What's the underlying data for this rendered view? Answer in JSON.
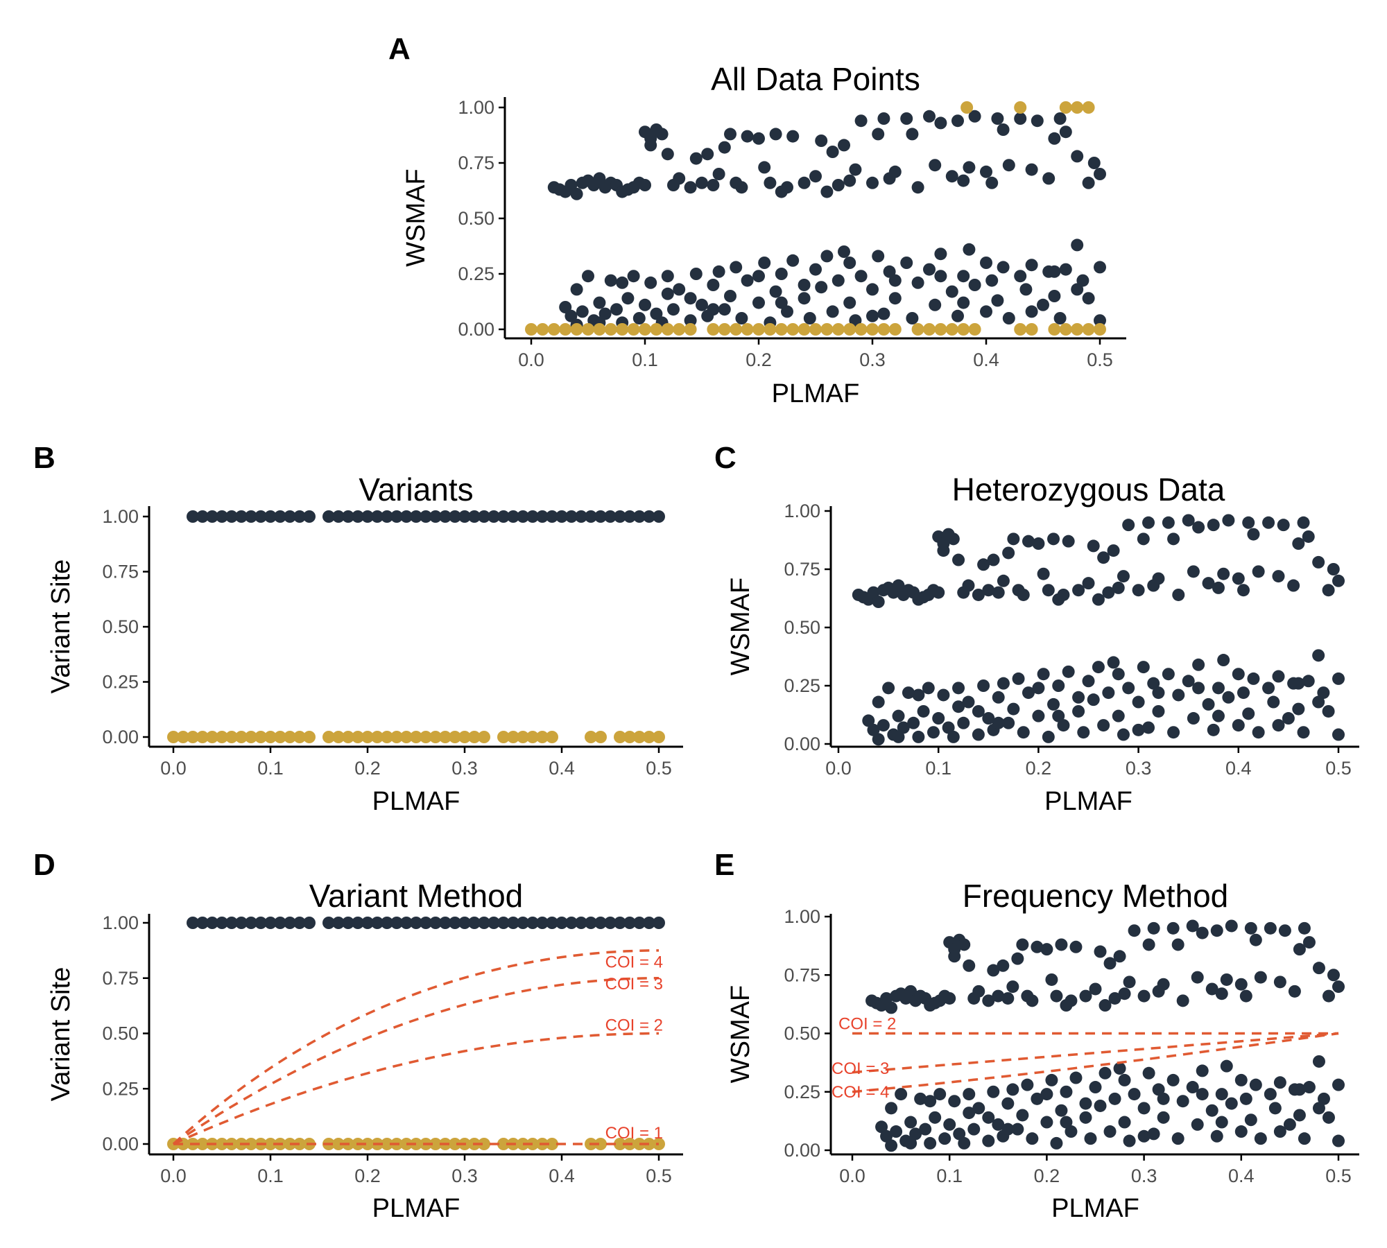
{
  "colors": {
    "variant": "#24303f",
    "reference": "#cca43c",
    "coi_line": "#e05a32",
    "coi_label": "#e8432c",
    "axis": "#000000",
    "tick_label": "#4d4d4d"
  },
  "chart_data": [
    {
      "id": "A",
      "letter": "A",
      "type": "scatter",
      "title": "All Data Points",
      "xlabel": "PLMAF",
      "ylabel": "WSMAF",
      "xlim": [
        0,
        0.5
      ],
      "ylim": [
        0,
        1
      ],
      "xticks": [
        "0.0",
        "0.1",
        "0.2",
        "0.3",
        "0.4",
        "0.5"
      ],
      "yticks": [
        "0.00",
        "0.25",
        "0.50",
        "0.75",
        "1.00"
      ],
      "grid": false,
      "legend": "none",
      "series": [
        {
          "role": "heterozygous",
          "color": "#24303f",
          "points": "het"
        },
        {
          "role": "homozygous",
          "color": "#cca43c",
          "points": "hom"
        }
      ]
    },
    {
      "id": "B",
      "letter": "B",
      "type": "scatter",
      "title": "Variants",
      "xlabel": "PLMAF",
      "ylabel": "Variant Site",
      "xlim": [
        0,
        0.5
      ],
      "ylim": [
        0,
        1
      ],
      "xticks": [
        "0.0",
        "0.1",
        "0.2",
        "0.3",
        "0.4",
        "0.5"
      ],
      "yticks": [
        "0.00",
        "0.25",
        "0.50",
        "0.75",
        "1.00"
      ],
      "grid": false,
      "legend": "none",
      "series": [
        {
          "role": "variant",
          "color": "#24303f",
          "points": "variant_sites"
        },
        {
          "role": "non-variant",
          "color": "#cca43c",
          "points": "nonvariant_sites"
        }
      ]
    },
    {
      "id": "C",
      "letter": "C",
      "type": "scatter",
      "title": "Heterozygous Data",
      "xlabel": "PLMAF",
      "ylabel": "WSMAF",
      "xlim": [
        0,
        0.5
      ],
      "ylim": [
        0,
        1
      ],
      "xticks": [
        "0.0",
        "0.1",
        "0.2",
        "0.3",
        "0.4",
        "0.5"
      ],
      "yticks": [
        "0.00",
        "0.25",
        "0.50",
        "0.75",
        "1.00"
      ],
      "grid": false,
      "legend": "none",
      "series": [
        {
          "role": "heterozygous",
          "color": "#24303f",
          "points": "het"
        }
      ]
    },
    {
      "id": "D",
      "letter": "D",
      "type": "scatter",
      "title": "Variant Method",
      "xlabel": "PLMAF",
      "ylabel": "Variant Site",
      "xlim": [
        0,
        0.5
      ],
      "ylim": [
        0,
        1
      ],
      "xticks": [
        "0.0",
        "0.1",
        "0.2",
        "0.3",
        "0.4",
        "0.5"
      ],
      "yticks": [
        "0.00",
        "0.25",
        "0.50",
        "0.75",
        "1.00"
      ],
      "grid": false,
      "legend": "none",
      "series": [
        {
          "role": "variant",
          "color": "#24303f",
          "points": "variant_sites"
        },
        {
          "role": "non-variant",
          "color": "#cca43c",
          "points": "nonvariant_sites"
        }
      ],
      "curves": [
        {
          "label": "COI = 1",
          "coi": 1,
          "kind": "variant"
        },
        {
          "label": "COI = 2",
          "coi": 2,
          "kind": "variant"
        },
        {
          "label": "COI = 3",
          "coi": 3,
          "kind": "variant"
        },
        {
          "label": "COI = 4",
          "coi": 4,
          "kind": "variant"
        }
      ]
    },
    {
      "id": "E",
      "letter": "E",
      "type": "scatter",
      "title": "Frequency Method",
      "xlabel": "PLMAF",
      "ylabel": "WSMAF",
      "xlim": [
        0,
        0.5
      ],
      "ylim": [
        0,
        1
      ],
      "xticks": [
        "0.0",
        "0.1",
        "0.2",
        "0.3",
        "0.4",
        "0.5"
      ],
      "yticks": [
        "0.00",
        "0.25",
        "0.50",
        "0.75",
        "1.00"
      ],
      "grid": false,
      "legend": "none",
      "series": [
        {
          "role": "heterozygous",
          "color": "#24303f",
          "points": "het"
        }
      ],
      "curves": [
        {
          "label": "COI = 2",
          "coi": 2,
          "kind": "frequency"
        },
        {
          "label": "COI = 3",
          "coi": 3,
          "kind": "frequency"
        },
        {
          "label": "COI = 4",
          "coi": 4,
          "kind": "frequency"
        }
      ]
    }
  ],
  "points": {
    "het": [
      [
        0.02,
        0.64
      ],
      [
        0.025,
        0.63
      ],
      [
        0.03,
        0.62
      ],
      [
        0.035,
        0.65
      ],
      [
        0.04,
        0.61
      ],
      [
        0.045,
        0.66
      ],
      [
        0.05,
        0.67
      ],
      [
        0.055,
        0.65
      ],
      [
        0.06,
        0.68
      ],
      [
        0.065,
        0.64
      ],
      [
        0.07,
        0.66
      ],
      [
        0.075,
        0.65
      ],
      [
        0.08,
        0.62
      ],
      [
        0.085,
        0.63
      ],
      [
        0.09,
        0.64
      ],
      [
        0.095,
        0.66
      ],
      [
        0.1,
        0.65
      ],
      [
        0.1,
        0.89
      ],
      [
        0.105,
        0.86
      ],
      [
        0.11,
        0.9
      ],
      [
        0.115,
        0.88
      ],
      [
        0.105,
        0.83
      ],
      [
        0.12,
        0.79
      ],
      [
        0.125,
        0.65
      ],
      [
        0.13,
        0.68
      ],
      [
        0.14,
        0.64
      ],
      [
        0.145,
        0.77
      ],
      [
        0.15,
        0.66
      ],
      [
        0.155,
        0.79
      ],
      [
        0.16,
        0.65
      ],
      [
        0.165,
        0.7
      ],
      [
        0.17,
        0.82
      ],
      [
        0.175,
        0.88
      ],
      [
        0.18,
        0.66
      ],
      [
        0.185,
        0.64
      ],
      [
        0.19,
        0.87
      ],
      [
        0.2,
        0.86
      ],
      [
        0.205,
        0.73
      ],
      [
        0.21,
        0.66
      ],
      [
        0.215,
        0.88
      ],
      [
        0.22,
        0.62
      ],
      [
        0.225,
        0.64
      ],
      [
        0.23,
        0.87
      ],
      [
        0.24,
        0.66
      ],
      [
        0.25,
        0.69
      ],
      [
        0.255,
        0.85
      ],
      [
        0.26,
        0.62
      ],
      [
        0.265,
        0.8
      ],
      [
        0.27,
        0.65
      ],
      [
        0.275,
        0.83
      ],
      [
        0.28,
        0.67
      ],
      [
        0.285,
        0.72
      ],
      [
        0.29,
        0.94
      ],
      [
        0.3,
        0.66
      ],
      [
        0.305,
        0.88
      ],
      [
        0.31,
        0.95
      ],
      [
        0.315,
        0.68
      ],
      [
        0.32,
        0.71
      ],
      [
        0.33,
        0.95
      ],
      [
        0.335,
        0.88
      ],
      [
        0.34,
        0.64
      ],
      [
        0.35,
        0.96
      ],
      [
        0.355,
        0.74
      ],
      [
        0.36,
        0.93
      ],
      [
        0.37,
        0.69
      ],
      [
        0.375,
        0.94
      ],
      [
        0.38,
        0.67
      ],
      [
        0.385,
        0.73
      ],
      [
        0.39,
        0.96
      ],
      [
        0.4,
        0.71
      ],
      [
        0.405,
        0.66
      ],
      [
        0.41,
        0.95
      ],
      [
        0.415,
        0.9
      ],
      [
        0.42,
        0.74
      ],
      [
        0.43,
        0.95
      ],
      [
        0.44,
        0.72
      ],
      [
        0.445,
        0.94
      ],
      [
        0.455,
        0.68
      ],
      [
        0.46,
        0.86
      ],
      [
        0.465,
        0.95
      ],
      [
        0.47,
        0.89
      ],
      [
        0.48,
        0.78
      ],
      [
        0.49,
        0.66
      ],
      [
        0.495,
        0.75
      ],
      [
        0.5,
        0.7
      ],
      [
        0.03,
        0.1
      ],
      [
        0.035,
        0.06
      ],
      [
        0.04,
        0.02
      ],
      [
        0.045,
        0.08
      ],
      [
        0.05,
        0.24
      ],
      [
        0.055,
        0.04
      ],
      [
        0.06,
        0.12
      ],
      [
        0.065,
        0.07
      ],
      [
        0.07,
        0.22
      ],
      [
        0.075,
        0.09
      ],
      [
        0.08,
        0.03
      ],
      [
        0.085,
        0.14
      ],
      [
        0.09,
        0.24
      ],
      [
        0.095,
        0.05
      ],
      [
        0.1,
        0.11
      ],
      [
        0.105,
        0.21
      ],
      [
        0.11,
        0.07
      ],
      [
        0.115,
        0.03
      ],
      [
        0.12,
        0.16
      ],
      [
        0.125,
        0.09
      ],
      [
        0.13,
        0.18
      ],
      [
        0.14,
        0.04
      ],
      [
        0.145,
        0.25
      ],
      [
        0.15,
        0.11
      ],
      [
        0.155,
        0.06
      ],
      [
        0.16,
        0.2
      ],
      [
        0.165,
        0.26
      ],
      [
        0.17,
        0.09
      ],
      [
        0.175,
        0.15
      ],
      [
        0.18,
        0.28
      ],
      [
        0.185,
        0.05
      ],
      [
        0.19,
        0.22
      ],
      [
        0.2,
        0.12
      ],
      [
        0.205,
        0.3
      ],
      [
        0.21,
        0.03
      ],
      [
        0.215,
        0.17
      ],
      [
        0.22,
        0.25
      ],
      [
        0.225,
        0.08
      ],
      [
        0.23,
        0.31
      ],
      [
        0.24,
        0.14
      ],
      [
        0.245,
        0.05
      ],
      [
        0.25,
        0.27
      ],
      [
        0.255,
        0.19
      ],
      [
        0.26,
        0.33
      ],
      [
        0.265,
        0.08
      ],
      [
        0.27,
        0.22
      ],
      [
        0.275,
        0.35
      ],
      [
        0.28,
        0.12
      ],
      [
        0.285,
        0.04
      ],
      [
        0.29,
        0.24
      ],
      [
        0.3,
        0.18
      ],
      [
        0.305,
        0.33
      ],
      [
        0.31,
        0.07
      ],
      [
        0.315,
        0.26
      ],
      [
        0.32,
        0.14
      ],
      [
        0.33,
        0.3
      ],
      [
        0.335,
        0.05
      ],
      [
        0.34,
        0.21
      ],
      [
        0.35,
        0.27
      ],
      [
        0.355,
        0.11
      ],
      [
        0.36,
        0.34
      ],
      [
        0.37,
        0.17
      ],
      [
        0.375,
        0.06
      ],
      [
        0.38,
        0.24
      ],
      [
        0.385,
        0.36
      ],
      [
        0.39,
        0.2
      ],
      [
        0.4,
        0.08
      ],
      [
        0.405,
        0.22
      ],
      [
        0.41,
        0.13
      ],
      [
        0.415,
        0.28
      ],
      [
        0.42,
        0.05
      ],
      [
        0.43,
        0.24
      ],
      [
        0.435,
        0.18
      ],
      [
        0.44,
        0.29
      ],
      [
        0.45,
        0.11
      ],
      [
        0.455,
        0.26
      ],
      [
        0.46,
        0.15
      ],
      [
        0.465,
        0.05
      ],
      [
        0.47,
        0.27
      ],
      [
        0.48,
        0.38
      ],
      [
        0.485,
        0.22
      ],
      [
        0.49,
        0.14
      ],
      [
        0.5,
        0.28
      ],
      [
        0.5,
        0.04
      ],
      [
        0.04,
        0.18
      ],
      [
        0.08,
        0.21
      ],
      [
        0.12,
        0.24
      ],
      [
        0.16,
        0.09
      ],
      [
        0.2,
        0.24
      ],
      [
        0.24,
        0.2
      ],
      [
        0.28,
        0.3
      ],
      [
        0.32,
        0.22
      ],
      [
        0.36,
        0.24
      ],
      [
        0.4,
        0.3
      ],
      [
        0.44,
        0.08
      ],
      [
        0.48,
        0.18
      ],
      [
        0.06,
        0.03
      ],
      [
        0.14,
        0.14
      ],
      [
        0.22,
        0.12
      ],
      [
        0.3,
        0.06
      ],
      [
        0.38,
        0.12
      ],
      [
        0.46,
        0.26
      ]
    ],
    "hom": [
      [
        0.0,
        0.0
      ],
      [
        0.01,
        0.0
      ],
      [
        0.02,
        0.0
      ],
      [
        0.03,
        0.0
      ],
      [
        0.04,
        0.0
      ],
      [
        0.05,
        0.0
      ],
      [
        0.06,
        0.0
      ],
      [
        0.07,
        0.0
      ],
      [
        0.08,
        0.0
      ],
      [
        0.09,
        0.0
      ],
      [
        0.1,
        0.0
      ],
      [
        0.11,
        0.0
      ],
      [
        0.12,
        0.0
      ],
      [
        0.13,
        0.0
      ],
      [
        0.14,
        0.0
      ],
      [
        0.16,
        0.0
      ],
      [
        0.17,
        0.0
      ],
      [
        0.18,
        0.0
      ],
      [
        0.19,
        0.0
      ],
      [
        0.2,
        0.0
      ],
      [
        0.21,
        0.0
      ],
      [
        0.22,
        0.0
      ],
      [
        0.23,
        0.0
      ],
      [
        0.24,
        0.0
      ],
      [
        0.25,
        0.0
      ],
      [
        0.26,
        0.0
      ],
      [
        0.27,
        0.0
      ],
      [
        0.28,
        0.0
      ],
      [
        0.29,
        0.0
      ],
      [
        0.3,
        0.0
      ],
      [
        0.31,
        0.0
      ],
      [
        0.32,
        0.0
      ],
      [
        0.34,
        0.0
      ],
      [
        0.35,
        0.0
      ],
      [
        0.36,
        0.0
      ],
      [
        0.37,
        0.0
      ],
      [
        0.38,
        0.0
      ],
      [
        0.39,
        0.0
      ],
      [
        0.43,
        0.0
      ],
      [
        0.44,
        0.0
      ],
      [
        0.46,
        0.0
      ],
      [
        0.47,
        0.0
      ],
      [
        0.48,
        0.0
      ],
      [
        0.49,
        0.0
      ],
      [
        0.5,
        0.0
      ],
      [
        0.383,
        1.0
      ],
      [
        0.43,
        1.0
      ],
      [
        0.48,
        1.0
      ],
      [
        0.49,
        1.0
      ],
      [
        0.47,
        1.0
      ]
    ],
    "variant_sites": [
      [
        0.02,
        1.0
      ],
      [
        0.03,
        1.0
      ],
      [
        0.04,
        1.0
      ],
      [
        0.05,
        1.0
      ],
      [
        0.06,
        1.0
      ],
      [
        0.07,
        1.0
      ],
      [
        0.08,
        1.0
      ],
      [
        0.09,
        1.0
      ],
      [
        0.1,
        1.0
      ],
      [
        0.11,
        1.0
      ],
      [
        0.12,
        1.0
      ],
      [
        0.13,
        1.0
      ],
      [
        0.14,
        1.0
      ],
      [
        0.16,
        1.0
      ],
      [
        0.17,
        1.0
      ],
      [
        0.18,
        1.0
      ],
      [
        0.19,
        1.0
      ],
      [
        0.2,
        1.0
      ],
      [
        0.21,
        1.0
      ],
      [
        0.22,
        1.0
      ],
      [
        0.23,
        1.0
      ],
      [
        0.24,
        1.0
      ],
      [
        0.25,
        1.0
      ],
      [
        0.26,
        1.0
      ],
      [
        0.27,
        1.0
      ],
      [
        0.28,
        1.0
      ],
      [
        0.29,
        1.0
      ],
      [
        0.3,
        1.0
      ],
      [
        0.31,
        1.0
      ],
      [
        0.32,
        1.0
      ],
      [
        0.33,
        1.0
      ],
      [
        0.34,
        1.0
      ],
      [
        0.35,
        1.0
      ],
      [
        0.36,
        1.0
      ],
      [
        0.37,
        1.0
      ],
      [
        0.38,
        1.0
      ],
      [
        0.39,
        1.0
      ],
      [
        0.4,
        1.0
      ],
      [
        0.41,
        1.0
      ],
      [
        0.42,
        1.0
      ],
      [
        0.43,
        1.0
      ],
      [
        0.44,
        1.0
      ],
      [
        0.45,
        1.0
      ],
      [
        0.46,
        1.0
      ],
      [
        0.47,
        1.0
      ],
      [
        0.48,
        1.0
      ],
      [
        0.49,
        1.0
      ],
      [
        0.5,
        1.0
      ]
    ],
    "nonvariant_sites": [
      [
        0.0,
        0.0
      ],
      [
        0.01,
        0.0
      ],
      [
        0.02,
        0.0
      ],
      [
        0.03,
        0.0
      ],
      [
        0.04,
        0.0
      ],
      [
        0.05,
        0.0
      ],
      [
        0.06,
        0.0
      ],
      [
        0.07,
        0.0
      ],
      [
        0.08,
        0.0
      ],
      [
        0.09,
        0.0
      ],
      [
        0.1,
        0.0
      ],
      [
        0.11,
        0.0
      ],
      [
        0.12,
        0.0
      ],
      [
        0.13,
        0.0
      ],
      [
        0.14,
        0.0
      ],
      [
        0.16,
        0.0
      ],
      [
        0.17,
        0.0
      ],
      [
        0.18,
        0.0
      ],
      [
        0.19,
        0.0
      ],
      [
        0.2,
        0.0
      ],
      [
        0.21,
        0.0
      ],
      [
        0.22,
        0.0
      ],
      [
        0.23,
        0.0
      ],
      [
        0.24,
        0.0
      ],
      [
        0.25,
        0.0
      ],
      [
        0.26,
        0.0
      ],
      [
        0.27,
        0.0
      ],
      [
        0.28,
        0.0
      ],
      [
        0.29,
        0.0
      ],
      [
        0.3,
        0.0
      ],
      [
        0.31,
        0.0
      ],
      [
        0.32,
        0.0
      ],
      [
        0.34,
        0.0
      ],
      [
        0.35,
        0.0
      ],
      [
        0.36,
        0.0
      ],
      [
        0.37,
        0.0
      ],
      [
        0.38,
        0.0
      ],
      [
        0.39,
        0.0
      ],
      [
        0.43,
        0.0
      ],
      [
        0.44,
        0.0
      ],
      [
        0.46,
        0.0
      ],
      [
        0.47,
        0.0
      ],
      [
        0.48,
        0.0
      ],
      [
        0.49,
        0.0
      ],
      [
        0.5,
        0.0
      ]
    ]
  }
}
